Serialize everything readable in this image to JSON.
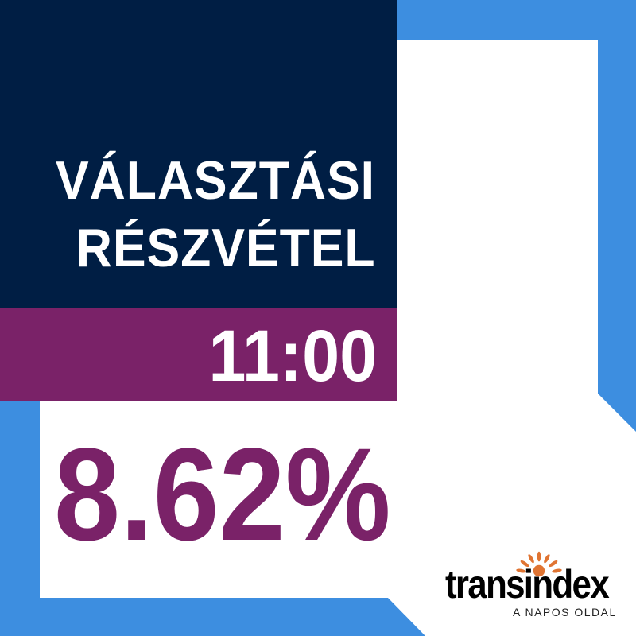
{
  "headline": {
    "line1": "VÁLASZTÁSI",
    "line2": "RÉSZVÉTEL"
  },
  "time": "11:00",
  "turnout_percent": "8.62%",
  "logo": {
    "name": "transindex",
    "tagline": "A NAPOS OLDAL"
  },
  "colors": {
    "navy": "#001e44",
    "purple": "#7a2268",
    "blue": "#3d8ee0",
    "white": "#ffffff",
    "sun": "#e07432"
  }
}
